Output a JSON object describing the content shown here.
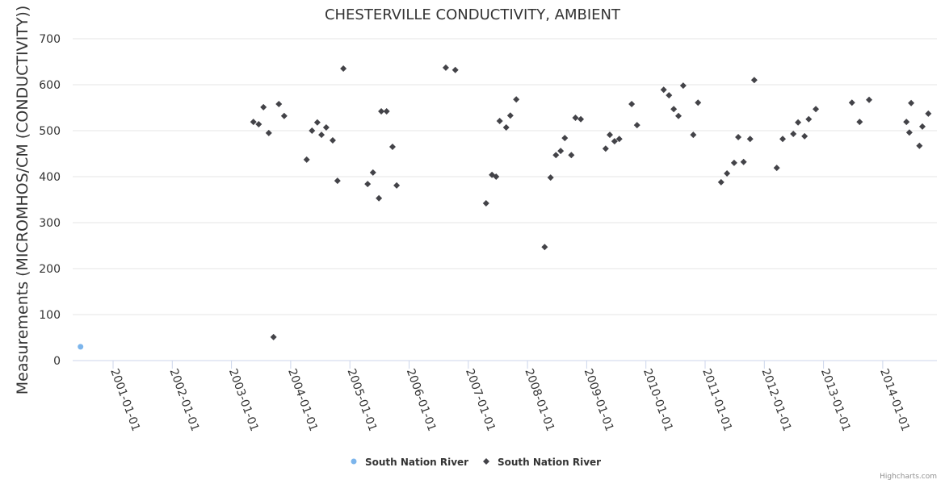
{
  "chart_data": {
    "type": "scatter",
    "title": "CHESTERVILLE CONDUCTIVITY, AMBIENT",
    "xlabel": "",
    "ylabel": "Measurements (MICROMHOS/CM (CONDUCTIVITY))",
    "ylim": [
      0,
      700
    ],
    "yticks": [
      0,
      100,
      200,
      300,
      400,
      500,
      600,
      700
    ],
    "x_unit": "decimal year",
    "xlim": [
      2000.3,
      2014.9
    ],
    "xticks": [
      {
        "value": 2001,
        "label": "2001-01-01"
      },
      {
        "value": 2002,
        "label": "2002-01-01"
      },
      {
        "value": 2003,
        "label": "2003-01-01"
      },
      {
        "value": 2004,
        "label": "2004-01-01"
      },
      {
        "value": 2005,
        "label": "2005-01-01"
      },
      {
        "value": 2006,
        "label": "2006-01-01"
      },
      {
        "value": 2007,
        "label": "2007-01-01"
      },
      {
        "value": 2008,
        "label": "2008-01-01"
      },
      {
        "value": 2009,
        "label": "2009-01-01"
      },
      {
        "value": 2010,
        "label": "2010-01-01"
      },
      {
        "value": 2011,
        "label": "2011-01-01"
      },
      {
        "value": 2012,
        "label": "2012-01-01"
      },
      {
        "value": 2013,
        "label": "2013-01-01"
      },
      {
        "value": 2014,
        "label": "2014-01-01"
      }
    ],
    "grid": true,
    "legend_position": "bottom-center",
    "series": [
      {
        "name": "South Nation River",
        "color": "#7cb5ec",
        "marker": "circle",
        "points": [
          [
            2000.45,
            30
          ]
        ]
      },
      {
        "name": "South Nation River",
        "color": "#434348",
        "marker": "diamond",
        "points": [
          [
            2003.37,
            519
          ],
          [
            2003.46,
            514
          ],
          [
            2003.54,
            551
          ],
          [
            2003.63,
            495
          ],
          [
            2003.71,
            51
          ],
          [
            2003.8,
            558
          ],
          [
            2003.89,
            532
          ],
          [
            2004.27,
            437
          ],
          [
            2004.36,
            500
          ],
          [
            2004.45,
            518
          ],
          [
            2004.52,
            491
          ],
          [
            2004.6,
            507
          ],
          [
            2004.71,
            479
          ],
          [
            2004.79,
            391
          ],
          [
            2004.89,
            635
          ],
          [
            2005.3,
            384
          ],
          [
            2005.39,
            409
          ],
          [
            2005.49,
            353
          ],
          [
            2005.53,
            542
          ],
          [
            2005.62,
            542
          ],
          [
            2005.72,
            465
          ],
          [
            2005.79,
            381
          ],
          [
            2006.62,
            637
          ],
          [
            2006.78,
            632
          ],
          [
            2007.3,
            342
          ],
          [
            2007.4,
            404
          ],
          [
            2007.47,
            400
          ],
          [
            2007.53,
            521
          ],
          [
            2007.64,
            507
          ],
          [
            2007.71,
            533
          ],
          [
            2007.81,
            568
          ],
          [
            2008.29,
            247
          ],
          [
            2008.39,
            398
          ],
          [
            2008.48,
            447
          ],
          [
            2008.56,
            456
          ],
          [
            2008.63,
            484
          ],
          [
            2008.74,
            447
          ],
          [
            2008.81,
            528
          ],
          [
            2008.9,
            525
          ],
          [
            2009.32,
            461
          ],
          [
            2009.39,
            491
          ],
          [
            2009.47,
            477
          ],
          [
            2009.55,
            482
          ],
          [
            2009.76,
            558
          ],
          [
            2009.85,
            512
          ],
          [
            2010.3,
            589
          ],
          [
            2010.39,
            577
          ],
          [
            2010.47,
            547
          ],
          [
            2010.55,
            532
          ],
          [
            2010.63,
            598
          ],
          [
            2010.8,
            491
          ],
          [
            2010.88,
            561
          ],
          [
            2011.27,
            388
          ],
          [
            2011.37,
            407
          ],
          [
            2011.49,
            430
          ],
          [
            2011.56,
            486
          ],
          [
            2011.65,
            432
          ],
          [
            2011.76,
            482
          ],
          [
            2011.83,
            610
          ],
          [
            2012.21,
            419
          ],
          [
            2012.31,
            482
          ],
          [
            2012.49,
            493
          ],
          [
            2012.57,
            518
          ],
          [
            2012.68,
            488
          ],
          [
            2012.75,
            525
          ],
          [
            2012.87,
            547
          ],
          [
            2013.48,
            561
          ],
          [
            2013.61,
            519
          ],
          [
            2013.77,
            567
          ],
          [
            2014.4,
            519
          ],
          [
            2014.45,
            496
          ],
          [
            2014.48,
            560
          ],
          [
            2014.62,
            467
          ],
          [
            2014.67,
            509
          ],
          [
            2014.77,
            537
          ]
        ]
      }
    ]
  },
  "credits": "Highcharts.com"
}
